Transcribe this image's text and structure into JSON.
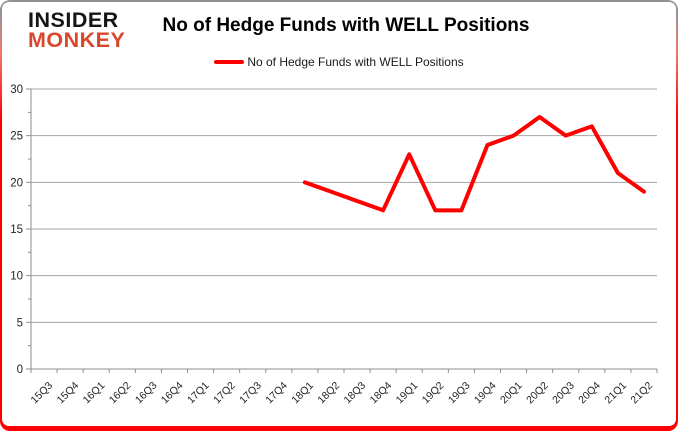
{
  "logo": {
    "line1": "INSIDER",
    "line2": "MONKEY"
  },
  "header": {
    "title": "No of Hedge Funds with WELL Positions"
  },
  "legend": {
    "label": "No of Hedge Funds with WELL Positions"
  },
  "chart_data": {
    "type": "line",
    "title": "No of Hedge Funds with WELL Positions",
    "categories": [
      "15Q3",
      "15Q4",
      "16Q1",
      "16Q2",
      "16Q3",
      "16Q4",
      "17Q1",
      "17Q2",
      "17Q3",
      "17Q4",
      "18Q1",
      "18Q2",
      "18Q3",
      "18Q4",
      "19Q1",
      "19Q2",
      "19Q3",
      "19Q4",
      "20Q1",
      "20Q2",
      "20Q3",
      "20Q4",
      "21Q1",
      "21Q2"
    ],
    "series": [
      {
        "name": "No of Hedge Funds with WELL Positions",
        "color": "#fe0000",
        "values": [
          null,
          null,
          null,
          null,
          null,
          null,
          null,
          null,
          null,
          null,
          20,
          19,
          18,
          17,
          23,
          17,
          17,
          24,
          25,
          27,
          25,
          26,
          21,
          19
        ]
      }
    ],
    "xlabel": "",
    "ylabel": "",
    "ylim": [
      0,
      30
    ],
    "ytick_step": 5,
    "yminor_step": 2.5,
    "grid": "horizontal",
    "legend_position": "top-center"
  },
  "colors": {
    "line": "#fe0000",
    "grid": "#a6a6a6",
    "axis": "#8e8e8e",
    "tick_label": "#262626",
    "logo_red": "#d9472b",
    "border_top_gray": "#919191",
    "border_red": "#fe0000"
  }
}
